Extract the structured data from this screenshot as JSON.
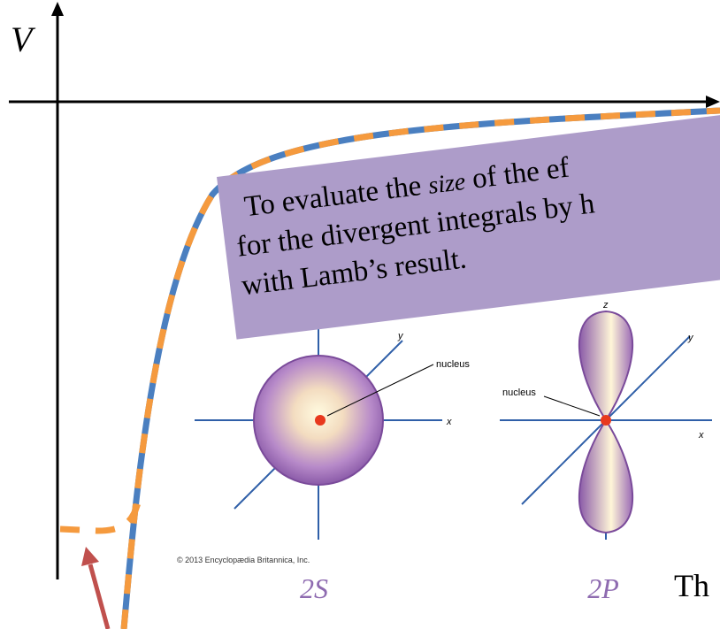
{
  "axis_label": "V",
  "callout": {
    "line1_before": "To evaluate the ",
    "line1_em": "size",
    "line1_after": " of the ef",
    "line2": "for the divergent integrals by h",
    "line3": "with Lamb’s result."
  },
  "orbitals": [
    {
      "name": "2S",
      "nucleus_label": "nucleus",
      "x_label": "x",
      "y_label": "y"
    },
    {
      "name": "2P",
      "nucleus_label": "nucleus",
      "x_label": "x",
      "y_label": "y",
      "z_label": "z"
    }
  ],
  "copyright": "© 2013 Encyclopædia Britannica, Inc.",
  "trailing_text": "Th"
}
